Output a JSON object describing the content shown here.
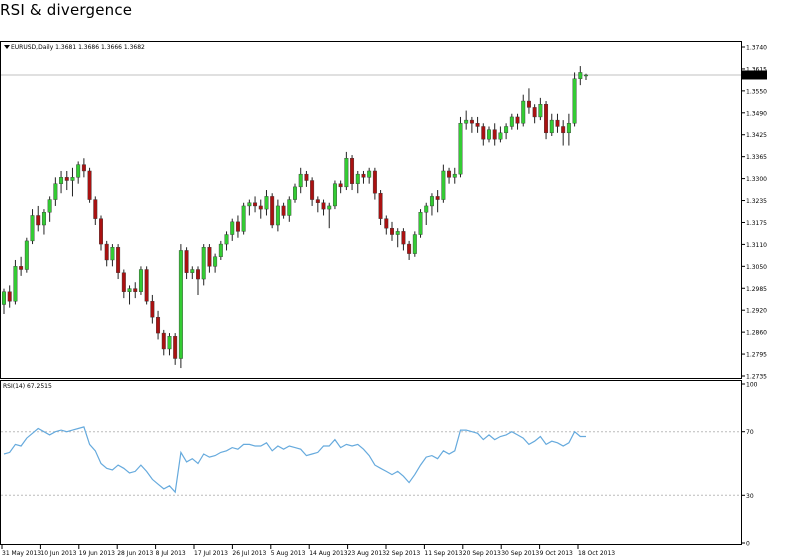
{
  "page": {
    "title": "RSI & divergence"
  },
  "price_panel": {
    "header": "EURUSD,Daily  1.3681 1.3686 1.3666 1.3682",
    "current_price_label": "1.3682"
  },
  "rsi_panel": {
    "header": "RSI(14) 67.2515"
  },
  "colors": {
    "bull": "#33cc33",
    "bear": "#aa1111",
    "wick": "#222222",
    "rsi_line": "#66aadd",
    "level_line": "#bbbbbb",
    "frame": "#000000",
    "price_box": "#000000",
    "price_box_text": "#ffffff"
  },
  "chart_data": [
    {
      "type": "candlestick",
      "title": "",
      "series": [
        {
          "name": "EURUSD,Daily",
          "values": [
            {
              "o": 1.296,
              "h": 1.301,
              "l": 1.293,
              "c": 1.3
            },
            {
              "o": 1.3,
              "h": 1.302,
              "l": 1.295,
              "c": 1.297
            },
            {
              "o": 1.297,
              "h": 1.31,
              "l": 1.296,
              "c": 1.308
            },
            {
              "o": 1.308,
              "h": 1.311,
              "l": 1.305,
              "c": 1.307
            },
            {
              "o": 1.307,
              "h": 1.317,
              "l": 1.306,
              "c": 1.316
            },
            {
              "o": 1.316,
              "h": 1.326,
              "l": 1.315,
              "c": 1.324
            },
            {
              "o": 1.324,
              "h": 1.327,
              "l": 1.319,
              "c": 1.321
            },
            {
              "o": 1.321,
              "h": 1.326,
              "l": 1.318,
              "c": 1.325
            },
            {
              "o": 1.325,
              "h": 1.33,
              "l": 1.322,
              "c": 1.329
            },
            {
              "o": 1.329,
              "h": 1.336,
              "l": 1.327,
              "c": 1.334
            },
            {
              "o": 1.334,
              "h": 1.338,
              "l": 1.331,
              "c": 1.336
            },
            {
              "o": 1.336,
              "h": 1.338,
              "l": 1.332,
              "c": 1.335
            },
            {
              "o": 1.335,
              "h": 1.339,
              "l": 1.33,
              "c": 1.336
            },
            {
              "o": 1.336,
              "h": 1.341,
              "l": 1.334,
              "c": 1.34
            },
            {
              "o": 1.34,
              "h": 1.342,
              "l": 1.336,
              "c": 1.338
            },
            {
              "o": 1.338,
              "h": 1.339,
              "l": 1.328,
              "c": 1.329
            },
            {
              "o": 1.329,
              "h": 1.33,
              "l": 1.321,
              "c": 1.323
            },
            {
              "o": 1.323,
              "h": 1.324,
              "l": 1.313,
              "c": 1.315
            },
            {
              "o": 1.315,
              "h": 1.316,
              "l": 1.308,
              "c": 1.31
            },
            {
              "o": 1.31,
              "h": 1.315,
              "l": 1.308,
              "c": 1.314
            },
            {
              "o": 1.314,
              "h": 1.315,
              "l": 1.304,
              "c": 1.306
            },
            {
              "o": 1.306,
              "h": 1.307,
              "l": 1.298,
              "c": 1.3
            },
            {
              "o": 1.3,
              "h": 1.302,
              "l": 1.296,
              "c": 1.301
            },
            {
              "o": 1.301,
              "h": 1.303,
              "l": 1.298,
              "c": 1.3
            },
            {
              "o": 1.3,
              "h": 1.308,
              "l": 1.299,
              "c": 1.307
            },
            {
              "o": 1.307,
              "h": 1.308,
              "l": 1.296,
              "c": 1.297
            },
            {
              "o": 1.297,
              "h": 1.299,
              "l": 1.29,
              "c": 1.292
            },
            {
              "o": 1.292,
              "h": 1.294,
              "l": 1.285,
              "c": 1.287
            },
            {
              "o": 1.287,
              "h": 1.288,
              "l": 1.28,
              "c": 1.282
            },
            {
              "o": 1.282,
              "h": 1.287,
              "l": 1.28,
              "c": 1.286
            },
            {
              "o": 1.286,
              "h": 1.287,
              "l": 1.277,
              "c": 1.279
            },
            {
              "o": 1.279,
              "h": 1.315,
              "l": 1.276,
              "c": 1.313
            },
            {
              "o": 1.313,
              "h": 1.314,
              "l": 1.304,
              "c": 1.306
            },
            {
              "o": 1.306,
              "h": 1.308,
              "l": 1.304,
              "c": 1.307
            },
            {
              "o": 1.307,
              "h": 1.308,
              "l": 1.299,
              "c": 1.304
            },
            {
              "o": 1.304,
              "h": 1.315,
              "l": 1.302,
              "c": 1.314
            },
            {
              "o": 1.314,
              "h": 1.315,
              "l": 1.306,
              "c": 1.308
            },
            {
              "o": 1.308,
              "h": 1.312,
              "l": 1.306,
              "c": 1.311
            },
            {
              "o": 1.311,
              "h": 1.316,
              "l": 1.31,
              "c": 1.315
            },
            {
              "o": 1.315,
              "h": 1.319,
              "l": 1.313,
              "c": 1.318
            },
            {
              "o": 1.318,
              "h": 1.323,
              "l": 1.316,
              "c": 1.322
            },
            {
              "o": 1.322,
              "h": 1.324,
              "l": 1.317,
              "c": 1.319
            },
            {
              "o": 1.319,
              "h": 1.328,
              "l": 1.318,
              "c": 1.327
            },
            {
              "o": 1.327,
              "h": 1.329,
              "l": 1.324,
              "c": 1.328
            },
            {
              "o": 1.328,
              "h": 1.33,
              "l": 1.325,
              "c": 1.327
            },
            {
              "o": 1.327,
              "h": 1.329,
              "l": 1.323,
              "c": 1.326
            },
            {
              "o": 1.326,
              "h": 1.332,
              "l": 1.324,
              "c": 1.33
            },
            {
              "o": 1.33,
              "h": 1.331,
              "l": 1.32,
              "c": 1.321
            },
            {
              "o": 1.321,
              "h": 1.329,
              "l": 1.319,
              "c": 1.327
            },
            {
              "o": 1.327,
              "h": 1.328,
              "l": 1.323,
              "c": 1.324
            },
            {
              "o": 1.324,
              "h": 1.33,
              "l": 1.322,
              "c": 1.329
            },
            {
              "o": 1.329,
              "h": 1.334,
              "l": 1.328,
              "c": 1.333
            },
            {
              "o": 1.333,
              "h": 1.339,
              "l": 1.331,
              "c": 1.337
            },
            {
              "o": 1.337,
              "h": 1.338,
              "l": 1.333,
              "c": 1.335
            },
            {
              "o": 1.335,
              "h": 1.336,
              "l": 1.327,
              "c": 1.329
            },
            {
              "o": 1.329,
              "h": 1.33,
              "l": 1.325,
              "c": 1.328
            },
            {
              "o": 1.328,
              "h": 1.329,
              "l": 1.324,
              "c": 1.326
            },
            {
              "o": 1.326,
              "h": 1.328,
              "l": 1.32,
              "c": 1.327
            },
            {
              "o": 1.327,
              "h": 1.335,
              "l": 1.326,
              "c": 1.334
            },
            {
              "o": 1.334,
              "h": 1.335,
              "l": 1.331,
              "c": 1.333
            },
            {
              "o": 1.333,
              "h": 1.344,
              "l": 1.332,
              "c": 1.342
            },
            {
              "o": 1.342,
              "h": 1.343,
              "l": 1.332,
              "c": 1.334
            },
            {
              "o": 1.334,
              "h": 1.338,
              "l": 1.331,
              "c": 1.337
            },
            {
              "o": 1.337,
              "h": 1.338,
              "l": 1.334,
              "c": 1.336
            },
            {
              "o": 1.336,
              "h": 1.339,
              "l": 1.334,
              "c": 1.338
            },
            {
              "o": 1.338,
              "h": 1.339,
              "l": 1.329,
              "c": 1.331
            },
            {
              "o": 1.331,
              "h": 1.332,
              "l": 1.321,
              "c": 1.323
            },
            {
              "o": 1.323,
              "h": 1.324,
              "l": 1.318,
              "c": 1.32
            },
            {
              "o": 1.32,
              "h": 1.322,
              "l": 1.316,
              "c": 1.318
            },
            {
              "o": 1.318,
              "h": 1.32,
              "l": 1.314,
              "c": 1.319
            },
            {
              "o": 1.319,
              "h": 1.32,
              "l": 1.313,
              "c": 1.315
            },
            {
              "o": 1.315,
              "h": 1.316,
              "l": 1.31,
              "c": 1.312
            },
            {
              "o": 1.312,
              "h": 1.319,
              "l": 1.311,
              "c": 1.318
            },
            {
              "o": 1.318,
              "h": 1.326,
              "l": 1.317,
              "c": 1.325
            },
            {
              "o": 1.325,
              "h": 1.328,
              "l": 1.321,
              "c": 1.327
            },
            {
              "o": 1.327,
              "h": 1.331,
              "l": 1.324,
              "c": 1.33
            },
            {
              "o": 1.33,
              "h": 1.332,
              "l": 1.325,
              "c": 1.329
            },
            {
              "o": 1.329,
              "h": 1.34,
              "l": 1.328,
              "c": 1.338
            },
            {
              "o": 1.338,
              "h": 1.339,
              "l": 1.334,
              "c": 1.336
            },
            {
              "o": 1.336,
              "h": 1.339,
              "l": 1.334,
              "c": 1.337
            },
            {
              "o": 1.337,
              "h": 1.355,
              "l": 1.336,
              "c": 1.353
            },
            {
              "o": 1.353,
              "h": 1.357,
              "l": 1.351,
              "c": 1.354
            },
            {
              "o": 1.354,
              "h": 1.355,
              "l": 1.35,
              "c": 1.353
            },
            {
              "o": 1.353,
              "h": 1.355,
              "l": 1.35,
              "c": 1.352
            },
            {
              "o": 1.352,
              "h": 1.353,
              "l": 1.346,
              "c": 1.348
            },
            {
              "o": 1.348,
              "h": 1.352,
              "l": 1.347,
              "c": 1.351
            },
            {
              "o": 1.351,
              "h": 1.353,
              "l": 1.346,
              "c": 1.348
            },
            {
              "o": 1.348,
              "h": 1.352,
              "l": 1.347,
              "c": 1.35
            },
            {
              "o": 1.35,
              "h": 1.353,
              "l": 1.348,
              "c": 1.352
            },
            {
              "o": 1.352,
              "h": 1.356,
              "l": 1.351,
              "c": 1.355
            },
            {
              "o": 1.355,
              "h": 1.356,
              "l": 1.351,
              "c": 1.353
            },
            {
              "o": 1.353,
              "h": 1.362,
              "l": 1.352,
              "c": 1.36
            },
            {
              "o": 1.36,
              "h": 1.364,
              "l": 1.356,
              "c": 1.358
            },
            {
              "o": 1.358,
              "h": 1.359,
              "l": 1.353,
              "c": 1.355
            },
            {
              "o": 1.355,
              "h": 1.361,
              "l": 1.354,
              "c": 1.359
            },
            {
              "o": 1.359,
              "h": 1.36,
              "l": 1.348,
              "c": 1.35
            },
            {
              "o": 1.35,
              "h": 1.356,
              "l": 1.349,
              "c": 1.354
            },
            {
              "o": 1.354,
              "h": 1.356,
              "l": 1.35,
              "c": 1.352
            },
            {
              "o": 1.352,
              "h": 1.354,
              "l": 1.346,
              "c": 1.35
            },
            {
              "o": 1.35,
              "h": 1.356,
              "l": 1.346,
              "c": 1.353
            },
            {
              "o": 1.353,
              "h": 1.369,
              "l": 1.352,
              "c": 1.367
            },
            {
              "o": 1.367,
              "h": 1.371,
              "l": 1.365,
              "c": 1.369
            },
            {
              "o": 1.3681,
              "h": 1.3686,
              "l": 1.3666,
              "c": 1.3682
            }
          ]
        }
      ],
      "xlabel": "",
      "ylabel": "",
      "ylim": [
        1.2735,
        1.377
      ],
      "y_ticks": [
        "1.3740",
        "1.3615",
        "1.3550",
        "1.3490",
        "1.3425",
        "1.3365",
        "1.3300",
        "1.3235",
        "1.3175",
        "1.3110",
        "1.3050",
        "1.2985",
        "1.2920",
        "1.2860",
        "1.2795",
        "1.2735"
      ],
      "x_tick_labels": [
        "31 May 2013",
        "10 Jun 2013",
        "19 Jun 2013",
        "28 Jun 2013",
        "8 Jul 2013",
        "17 Jul 2013",
        "26 Jul 2013",
        "5 Aug 2013",
        "14 Aug 2013",
        "23 Aug 2013",
        "2 Sep 2013",
        "11 Sep 2013",
        "20 Sep 2013",
        "30 Sep 2013",
        "9 Oct 2013",
        "18 Oct 2013"
      ],
      "current_price": 1.3682,
      "grid": false
    },
    {
      "type": "line",
      "title": "",
      "series": [
        {
          "name": "RSI(14)",
          "values": [
            56,
            57,
            62,
            61,
            66,
            69,
            72,
            70,
            68,
            70,
            71,
            70,
            71,
            72,
            73,
            62,
            58,
            50,
            47,
            46,
            49,
            47,
            44,
            45,
            49,
            45,
            40,
            37,
            34,
            36,
            32,
            57,
            51,
            53,
            50,
            56,
            54,
            55,
            57,
            58,
            60,
            59,
            62,
            62,
            61,
            61,
            63,
            58,
            61,
            59,
            61,
            60,
            59,
            55,
            56,
            57,
            61,
            61,
            65,
            60,
            62,
            61,
            62,
            59,
            55,
            49,
            47,
            45,
            43,
            45,
            42,
            38,
            43,
            49,
            54,
            55,
            53,
            58,
            56,
            58,
            71,
            71,
            70,
            69,
            65,
            68,
            65,
            67,
            68,
            70,
            68,
            66,
            62,
            64,
            67,
            62,
            64,
            63,
            61,
            63,
            70,
            67,
            67
          ]
        }
      ],
      "ylim": [
        0,
        100
      ],
      "y_ticks": [
        "100",
        "70",
        "30",
        "0"
      ],
      "levels": [
        70,
        30
      ],
      "grid": false
    }
  ]
}
